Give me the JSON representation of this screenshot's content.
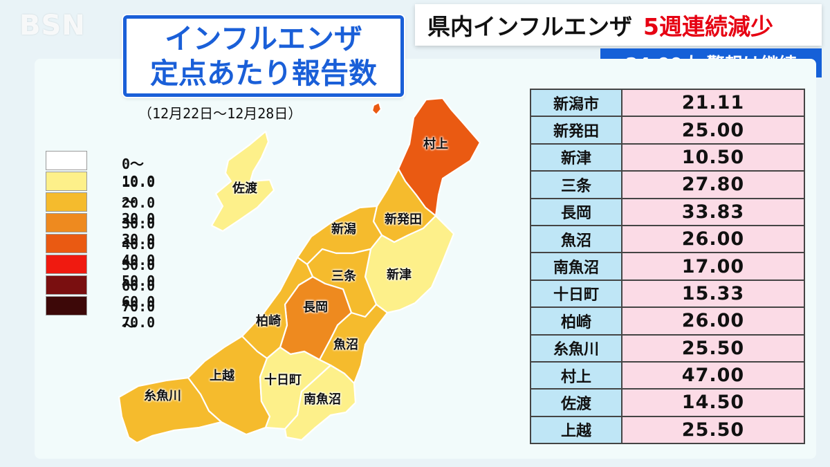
{
  "logo": "BSN",
  "headline": {
    "main": "県内インフルエンザ",
    "accent": "5週連続減少"
  },
  "subheadline": "24.00人 警報は継続",
  "title": {
    "line1": "インフルエンザ",
    "line2": "定点あたり報告数"
  },
  "date_range": "（12月22日～12月28日）",
  "legend": [
    {
      "label": "0～10.0",
      "color": "#ffffff"
    },
    {
      "label": "10.0～20.0",
      "color": "#fdf08a"
    },
    {
      "label": "20.0～30.0",
      "color": "#f5bb2d"
    },
    {
      "label": "30.0～40.0",
      "color": "#ee8a1f"
    },
    {
      "label": "40.0～50.0",
      "color": "#ea5a12"
    },
    {
      "label": "50.0～60.0",
      "color": "#f01a10"
    },
    {
      "label": "60.0～70.0",
      "color": "#7a0f10"
    },
    {
      "label": "70.0～",
      "color": "#3d0808"
    }
  ],
  "map_labels": {
    "murakami": "村上",
    "sado": "佐渡",
    "niigata": "新潟",
    "shibata": "新発田",
    "sanjo": "三条",
    "niitsu": "新津",
    "nagaoka": "長岡",
    "kashiwazaki": "柏崎",
    "uonuma": "魚沼",
    "joetsu": "上越",
    "tokamachi": "十日町",
    "itoigawa": "糸魚川",
    "minamiuonuma": "南魚沼"
  },
  "table": [
    {
      "name": "新潟市",
      "value": "21.11"
    },
    {
      "name": "新発田",
      "value": "25.00"
    },
    {
      "name": "新津",
      "value": "10.50"
    },
    {
      "name": "三条",
      "value": "27.80"
    },
    {
      "name": "長岡",
      "value": "33.83"
    },
    {
      "name": "魚沼",
      "value": "26.00"
    },
    {
      "name": "南魚沼",
      "value": "17.00"
    },
    {
      "name": "十日町",
      "value": "15.33"
    },
    {
      "name": "柏崎",
      "value": "26.00"
    },
    {
      "name": "糸魚川",
      "value": "25.50"
    },
    {
      "name": "村上",
      "value": "47.00"
    },
    {
      "name": "佐渡",
      "value": "14.50"
    },
    {
      "name": "上越",
      "value": "25.50"
    }
  ]
}
